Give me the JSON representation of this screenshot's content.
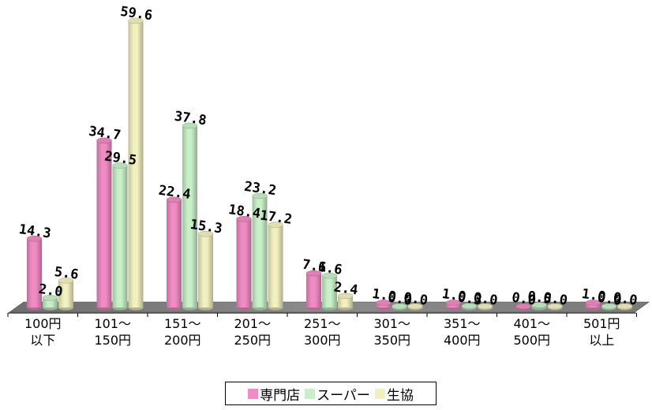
{
  "chart_data": {
    "type": "bar",
    "categories": [
      "100円\n以下",
      "101〜\n150円",
      "151〜\n200円",
      "201〜\n250円",
      "251〜\n300円",
      "301〜\n350円",
      "351〜\n400円",
      "401〜\n500円",
      "501円\n以上"
    ],
    "series": [
      {
        "name": "専門店",
        "color": "#f08cc4",
        "values": [
          14.3,
          34.7,
          22.4,
          18.4,
          7.1,
          1.0,
          1.0,
          0.0,
          1.0
        ]
      },
      {
        "name": "スーパー",
        "color": "#c8f0c8",
        "values": [
          2.0,
          29.5,
          37.8,
          23.2,
          6.6,
          0.0,
          0.3,
          0.5,
          0.0
        ]
      },
      {
        "name": "生協",
        "color": "#f2f0c0",
        "values": [
          5.6,
          59.6,
          15.3,
          17.2,
          2.4,
          0.0,
          0.0,
          0.0,
          0.0
        ]
      }
    ],
    "value_labels": [
      [
        "14.3",
        "2.0",
        "5.6"
      ],
      [
        "34.7",
        "29.5",
        "59.6"
      ],
      [
        "22.4",
        "37.8",
        "15.3"
      ],
      [
        "18.4",
        "23.2",
        "17.2"
      ],
      [
        "7.1",
        "6.6",
        "2.4"
      ],
      [
        "1.0",
        "0.0",
        "0.0"
      ],
      [
        "1.0",
        "0.3",
        "0.0"
      ],
      [
        "0.0",
        "0.5",
        "0.0"
      ],
      [
        "1.0",
        "0.0",
        "0.0"
      ]
    ],
    "ylim": [
      0,
      60
    ],
    "grid": false,
    "legend_position": "bottom",
    "style": "3d-cylinder"
  }
}
